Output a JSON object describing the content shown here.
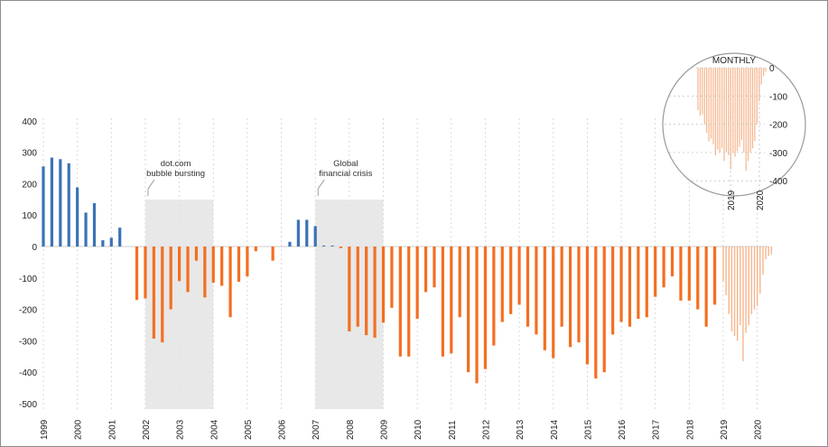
{
  "chart_data": [
    {
      "type": "bar",
      "x_labels": [
        "1999",
        "2000",
        "2001",
        "2002",
        "2003",
        "2004",
        "2005",
        "2006",
        "2007",
        "2008",
        "2009",
        "2010",
        "2011",
        "2012",
        "2013",
        "2014",
        "2015",
        "2016",
        "2017",
        "2018",
        "2019",
        "2020"
      ],
      "y_ticks": [
        "400",
        "300",
        "200",
        "100",
        "0",
        "-100",
        "-200",
        "-300",
        "-400",
        "-500"
      ],
      "ylim": [
        -500,
        400
      ],
      "grid": "vertical dashed",
      "colors": {
        "positive": "#3a73b5",
        "negative": "#f36f21",
        "monthly": "#f7b58c",
        "recession": "#e4e4e4"
      },
      "quarters": [
        {
          "x": 1999.0,
          "value": 255
        },
        {
          "x": 1999.25,
          "value": 283
        },
        {
          "x": 1999.5,
          "value": 278
        },
        {
          "x": 1999.75,
          "value": 265
        },
        {
          "x": 2000.0,
          "value": 188
        },
        {
          "x": 2000.25,
          "value": 108
        },
        {
          "x": 2000.5,
          "value": 138
        },
        {
          "x": 2000.75,
          "value": 20
        },
        {
          "x": 2001.0,
          "value": 28
        },
        {
          "x": 2001.25,
          "value": 60
        },
        {
          "x": 2001.5,
          "value": 0
        },
        {
          "x": 2001.75,
          "value": -170
        },
        {
          "x": 2002.0,
          "value": -165
        },
        {
          "x": 2002.25,
          "value": -293
        },
        {
          "x": 2002.5,
          "value": -305
        },
        {
          "x": 2002.75,
          "value": -200
        },
        {
          "x": 2003.0,
          "value": -110
        },
        {
          "x": 2003.25,
          "value": -145
        },
        {
          "x": 2003.5,
          "value": -45
        },
        {
          "x": 2003.75,
          "value": -162
        },
        {
          "x": 2004.0,
          "value": -115
        },
        {
          "x": 2004.25,
          "value": -125
        },
        {
          "x": 2004.5,
          "value": -225
        },
        {
          "x": 2004.75,
          "value": -112
        },
        {
          "x": 2005.0,
          "value": -95
        },
        {
          "x": 2005.25,
          "value": -15
        },
        {
          "x": 2005.5,
          "value": 0
        },
        {
          "x": 2005.75,
          "value": -45
        },
        {
          "x": 2006.0,
          "value": 0
        },
        {
          "x": 2006.25,
          "value": 15
        },
        {
          "x": 2006.5,
          "value": 85
        },
        {
          "x": 2006.75,
          "value": 85
        },
        {
          "x": 2007.0,
          "value": 65
        },
        {
          "x": 2007.25,
          "value": 3
        },
        {
          "x": 2007.5,
          "value": 3
        },
        {
          "x": 2007.75,
          "value": -5
        },
        {
          "x": 2008.0,
          "value": -270
        },
        {
          "x": 2008.25,
          "value": -255
        },
        {
          "x": 2008.5,
          "value": -282
        },
        {
          "x": 2008.75,
          "value": -290
        },
        {
          "x": 2009.0,
          "value": -242
        },
        {
          "x": 2009.25,
          "value": -195
        },
        {
          "x": 2009.5,
          "value": -350
        },
        {
          "x": 2009.75,
          "value": -350
        },
        {
          "x": 2010.0,
          "value": -230
        },
        {
          "x": 2010.25,
          "value": -145
        },
        {
          "x": 2010.5,
          "value": -130
        },
        {
          "x": 2010.75,
          "value": -350
        },
        {
          "x": 2011.0,
          "value": -340
        },
        {
          "x": 2011.25,
          "value": -225
        },
        {
          "x": 2011.5,
          "value": -400
        },
        {
          "x": 2011.75,
          "value": -435
        },
        {
          "x": 2012.0,
          "value": -390
        },
        {
          "x": 2012.25,
          "value": -315
        },
        {
          "x": 2012.5,
          "value": -240
        },
        {
          "x": 2012.75,
          "value": -215
        },
        {
          "x": 2013.0,
          "value": -185
        },
        {
          "x": 2013.25,
          "value": -255
        },
        {
          "x": 2013.5,
          "value": -280
        },
        {
          "x": 2013.75,
          "value": -330
        },
        {
          "x": 2014.0,
          "value": -355
        },
        {
          "x": 2014.25,
          "value": -255
        },
        {
          "x": 2014.5,
          "value": -320
        },
        {
          "x": 2014.75,
          "value": -305
        },
        {
          "x": 2015.0,
          "value": -375
        },
        {
          "x": 2015.25,
          "value": -420
        },
        {
          "x": 2015.5,
          "value": -400
        },
        {
          "x": 2015.75,
          "value": -280
        },
        {
          "x": 2016.0,
          "value": -240
        },
        {
          "x": 2016.25,
          "value": -255
        },
        {
          "x": 2016.5,
          "value": -230
        },
        {
          "x": 2016.75,
          "value": -225
        },
        {
          "x": 2017.0,
          "value": -160
        },
        {
          "x": 2017.25,
          "value": -130
        },
        {
          "x": 2017.5,
          "value": -95
        },
        {
          "x": 2017.75,
          "value": -172
        },
        {
          "x": 2018.0,
          "value": -172
        },
        {
          "x": 2018.25,
          "value": -200
        },
        {
          "x": 2018.5,
          "value": -255
        },
        {
          "x": 2018.75,
          "value": -185
        }
      ],
      "monthly_tail": [
        {
          "x": 2019.0,
          "value": -110
        },
        {
          "x": 2019.083,
          "value": -155
        },
        {
          "x": 2019.167,
          "value": -215
        },
        {
          "x": 2019.25,
          "value": -270
        },
        {
          "x": 2019.333,
          "value": -285
        },
        {
          "x": 2019.417,
          "value": -300
        },
        {
          "x": 2019.5,
          "value": -250
        },
        {
          "x": 2019.583,
          "value": -365
        },
        {
          "x": 2019.667,
          "value": -275
        },
        {
          "x": 2019.75,
          "value": -250
        },
        {
          "x": 2019.833,
          "value": -215
        },
        {
          "x": 2019.917,
          "value": -200
        },
        {
          "x": 2020.0,
          "value": -190
        },
        {
          "x": 2020.083,
          "value": -150
        },
        {
          "x": 2020.167,
          "value": -90
        },
        {
          "x": 2020.25,
          "value": -40
        },
        {
          "x": 2020.333,
          "value": -30
        },
        {
          "x": 2020.417,
          "value": -25
        }
      ],
      "shaded_periods": [
        {
          "start": 2002.0,
          "end": 2004.0,
          "label_line1": "dot.com",
          "label_line2": "bubble bursting"
        },
        {
          "start": 2007.0,
          "end": 2009.0,
          "label_line1": "Global",
          "label_line2": "financial crisis"
        }
      ]
    },
    {
      "type": "bar",
      "title": "MONTHLY",
      "x_labels": [
        "2019",
        "2020"
      ],
      "y_ticks": [
        "0",
        "-100",
        "-200",
        "-300",
        "-400"
      ],
      "ylim": [
        -400,
        0
      ],
      "values": [
        -150,
        -170,
        -165,
        -200,
        -230,
        -260,
        -250,
        -270,
        -310,
        -290,
        -300,
        -285,
        -330,
        -300,
        -310,
        -360,
        -300,
        -315,
        -295,
        -280,
        -255,
        -300,
        -365,
        -330,
        -300,
        -285,
        -260,
        -200,
        -120,
        -60,
        -30,
        -15
      ]
    }
  ]
}
